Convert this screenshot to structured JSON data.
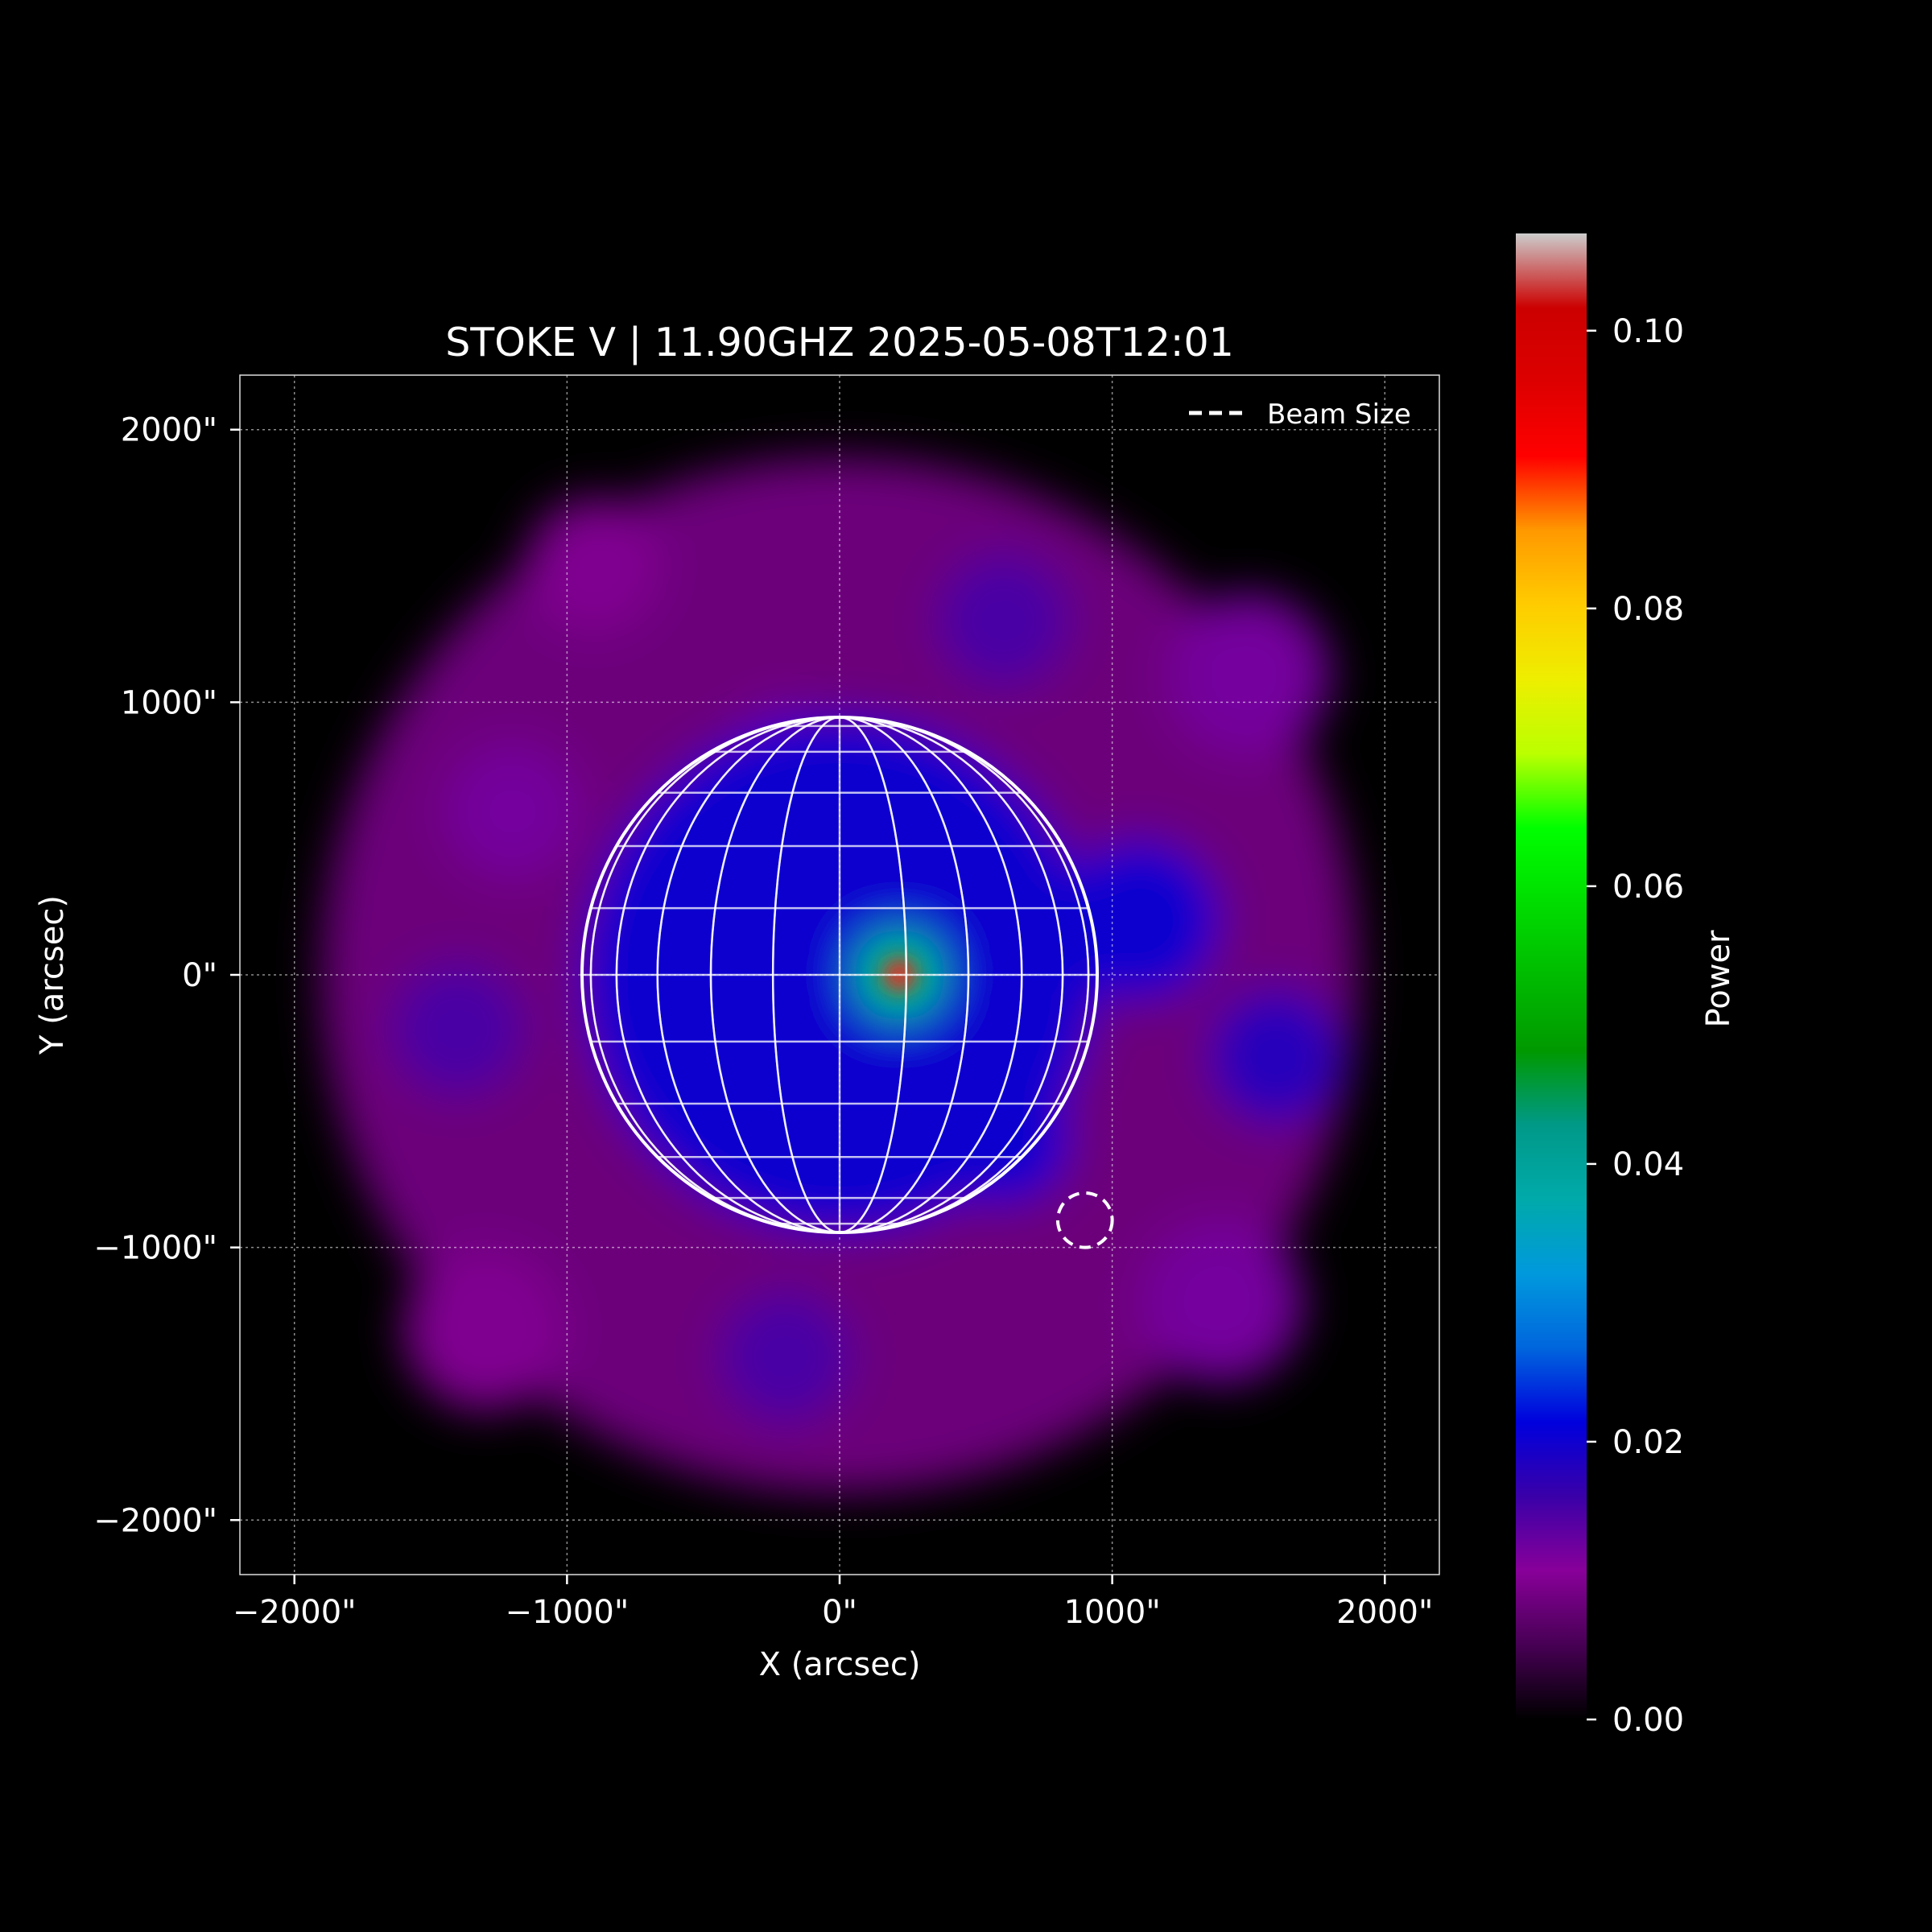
{
  "chart_data": {
    "type": "heatmap",
    "title": "STOKE V | 11.90GHZ 2025-05-08T12:01",
    "xlabel": "X (arcsec)",
    "ylabel": "Y (arcsec)",
    "xlim": [
      -2200,
      2200
    ],
    "ylim": [
      -2200,
      2200
    ],
    "x_ticks": [
      -2000,
      -1000,
      0,
      1000,
      2000
    ],
    "y_ticks": [
      2000,
      1000,
      0,
      -1000,
      -2000
    ],
    "x_tick_labels": [
      "−2000\"",
      "−1000\"",
      "0\"",
      "1000\"",
      "2000\""
    ],
    "y_tick_labels": [
      "2000\"",
      "1000\"",
      "0\"",
      "−1000\"",
      "−2000\""
    ],
    "grid": true,
    "legend": {
      "placement": "top-right",
      "entries": [
        "Beam Size"
      ]
    },
    "colorbar": {
      "label": "Power",
      "range": [
        0.0,
        0.107
      ],
      "ticks": [
        0.1,
        0.08,
        0.06,
        0.04,
        0.02,
        0.0
      ],
      "tick_labels": [
        "0.10",
        "0.08",
        "0.06",
        "0.04",
        "0.02",
        "0.00"
      ],
      "colormap": "nipy_spectral"
    },
    "solar_disk": {
      "center": [
        0,
        0
      ],
      "radius": 945,
      "meridian_spacing_deg": 15,
      "parallel_spacing_deg": 15
    },
    "beam": {
      "center": [
        900,
        -900
      ],
      "radius": 100
    },
    "peak": {
      "x": 220,
      "y": 0,
      "value": 0.105
    },
    "sources": [
      {
        "x": 220,
        "y": 0,
        "r": 80,
        "value": 0.06
      },
      {
        "x": 220,
        "y": 0,
        "r": 170,
        "value": 0.04
      },
      {
        "x": 0,
        "y": 0,
        "r": 950,
        "value": 0.02
      },
      {
        "x": 600,
        "y": -600,
        "r": 250,
        "value": 0.02
      },
      {
        "x": -400,
        "y": 250,
        "r": 300,
        "value": 0.012
      },
      {
        "x": 400,
        "y": 350,
        "r": 250,
        "value": 0.012
      },
      {
        "x": 300,
        "y": -550,
        "r": 150,
        "value": 0.02
      },
      {
        "x": -300,
        "y": -500,
        "r": 180,
        "value": 0.015
      },
      {
        "x": 700,
        "y": 0,
        "r": 150,
        "value": 0.015
      },
      {
        "x": -200,
        "y": 800,
        "r": 200,
        "value": 0.012
      },
      {
        "x": 1100,
        "y": 200,
        "r": 300,
        "value": 0.02
      },
      {
        "x": 1600,
        "y": -300,
        "r": 250,
        "value": 0.018
      },
      {
        "x": -1400,
        "y": -200,
        "r": 250,
        "value": 0.015
      },
      {
        "x": -200,
        "y": -1400,
        "r": 250,
        "value": 0.015
      },
      {
        "x": 600,
        "y": 1300,
        "r": 250,
        "value": 0.015
      },
      {
        "x": -1200,
        "y": 600,
        "r": 250,
        "value": 0.012
      },
      {
        "x": -900,
        "y": 1500,
        "r": 250,
        "value": 0.01
      },
      {
        "x": 1500,
        "y": 1100,
        "r": 300,
        "value": 0.012
      },
      {
        "x": 1400,
        "y": -1200,
        "r": 300,
        "value": 0.012
      },
      {
        "x": -1300,
        "y": -1300,
        "r": 300,
        "value": 0.01
      }
    ]
  }
}
